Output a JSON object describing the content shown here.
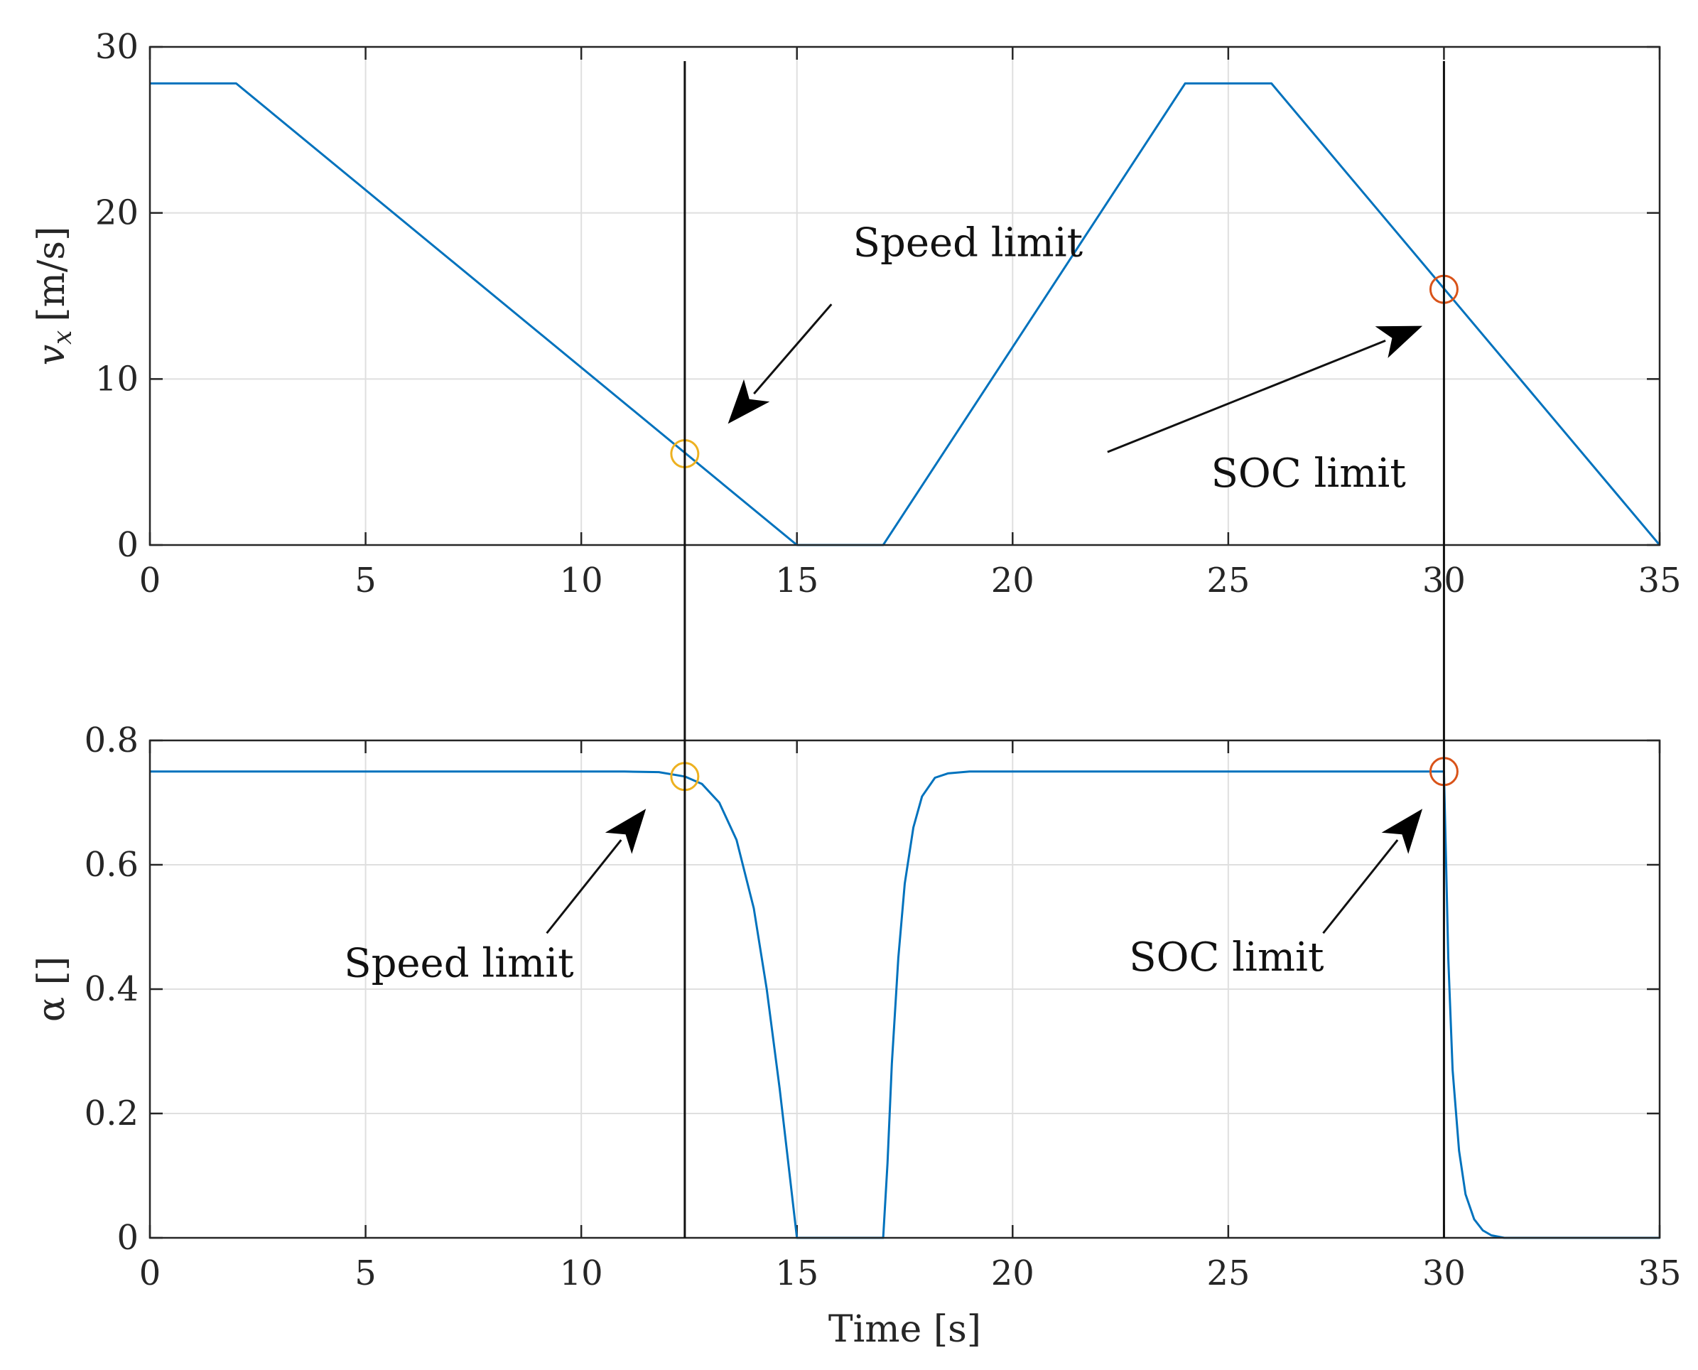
{
  "chart_data": [
    {
      "type": "line",
      "ylabel_main": "v",
      "ylabel_sub": "x",
      "ylabel_unit": "[m/s]",
      "xlim": [
        0,
        35
      ],
      "ylim": [
        0,
        30
      ],
      "xticks": [
        0,
        5,
        10,
        15,
        20,
        25,
        30,
        35
      ],
      "yticks": [
        0,
        10,
        20,
        30
      ],
      "grid": true,
      "series": [
        {
          "name": "v_x",
          "color": "#0072BD",
          "x": [
            0,
            2,
            15,
            17,
            24,
            26,
            35
          ],
          "y": [
            27.8,
            27.8,
            0,
            0,
            27.8,
            27.8,
            0
          ]
        }
      ],
      "markers": [
        {
          "x": 12.4,
          "y": 5.5,
          "color": "#EDB120"
        },
        {
          "x": 30,
          "y": 15.4,
          "color": "#D95319"
        }
      ],
      "annotations": [
        {
          "text": "Speed limit",
          "x": 16.3,
          "y": 17.4,
          "arrow_from": [
            15.8,
            14.5
          ],
          "arrow_to": [
            13.4,
            7.3
          ]
        },
        {
          "text": "SOC limit",
          "x": 24.6,
          "y": 3.5,
          "arrow_from": [
            22.2,
            5.6
          ],
          "arrow_to": [
            29.5,
            13.2
          ]
        }
      ]
    },
    {
      "type": "line",
      "ylabel": "α []",
      "xlabel": "Time [s]",
      "xlim": [
        0,
        35
      ],
      "ylim": [
        0,
        0.8
      ],
      "xticks": [
        0,
        5,
        10,
        15,
        20,
        25,
        30,
        35
      ],
      "yticks": [
        0,
        0.2,
        0.4,
        0.6,
        0.8
      ],
      "grid": true,
      "series": [
        {
          "name": "alpha",
          "color": "#0072BD",
          "x": [
            0,
            11.0,
            11.8,
            12.4,
            12.8,
            13.2,
            13.6,
            14.0,
            14.3,
            14.6,
            14.8,
            15.0,
            17.0,
            17.1,
            17.2,
            17.35,
            17.5,
            17.7,
            17.9,
            18.2,
            18.5,
            19.0,
            30.0,
            30.05,
            30.1,
            30.2,
            30.35,
            30.5,
            30.7,
            30.9,
            31.1,
            31.4,
            35
          ],
          "y": [
            0.75,
            0.75,
            0.749,
            0.742,
            0.73,
            0.7,
            0.64,
            0.53,
            0.4,
            0.24,
            0.12,
            0,
            0,
            0.12,
            0.28,
            0.45,
            0.57,
            0.66,
            0.71,
            0.74,
            0.747,
            0.75,
            0.75,
            0.6,
            0.45,
            0.27,
            0.14,
            0.07,
            0.03,
            0.012,
            0.004,
            0,
            0
          ]
        }
      ],
      "markers": [
        {
          "x": 12.4,
          "y": 0.742,
          "color": "#EDB120"
        },
        {
          "x": 30,
          "y": 0.75,
          "color": "#D95319"
        }
      ],
      "annotations": [
        {
          "text": "Speed limit",
          "x": 4.5,
          "y": 0.42,
          "arrow_from": [
            9.2,
            0.49
          ],
          "arrow_to": [
            11.5,
            0.69
          ]
        },
        {
          "text": "SOC limit",
          "x": 22.7,
          "y": 0.43,
          "arrow_from": [
            27.2,
            0.49
          ],
          "arrow_to": [
            29.5,
            0.69
          ]
        }
      ]
    }
  ],
  "vertical_lines": [
    12.4,
    30
  ]
}
